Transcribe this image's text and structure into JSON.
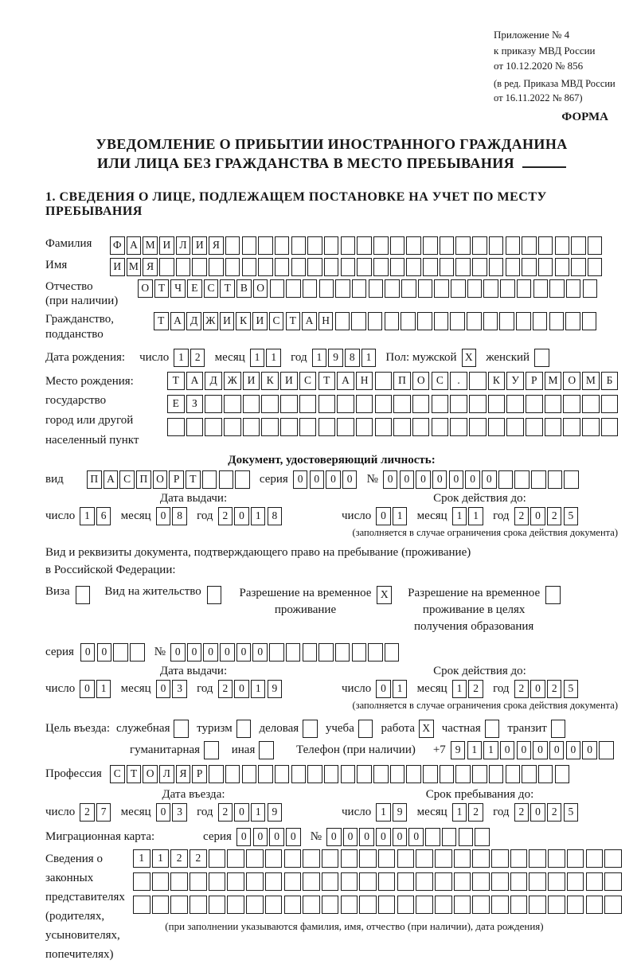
{
  "header": {
    "lines": [
      "Приложение № 4",
      "к приказу МВД России",
      "от 10.12.2020 № 856",
      "(в ред. Приказа МВД России",
      "от 16.11.2022 № 867)"
    ],
    "form_label": "ФОРМА"
  },
  "title": {
    "line1": "УВЕДОМЛЕНИЕ О ПРИБЫТИИ ИНОСТРАННОГО ГРАЖДАНИНА",
    "line2": "ИЛИ ЛИЦА БЕЗ ГРАЖДАНСТВА В МЕСТО ПРЕБЫВАНИЯ"
  },
  "section1_heading": "1. СВЕДЕНИЯ О ЛИЦЕ, ПОДЛЕЖАЩЕМ ПОСТАНОВКЕ НА УЧЕТ ПО МЕСТУ ПРЕБЫВАНИЯ",
  "labels": {
    "surname": "Фамилия",
    "name": "Имя",
    "patronymic1": "Отчество",
    "patronymic2": "(при наличии)",
    "citizenship1": "Гражданство,",
    "citizenship2": "подданство",
    "birth_date": "Дата рождения:",
    "day": "число",
    "month": "месяц",
    "year": "год",
    "sex_male": "Пол: мужской",
    "sex_female": "женский",
    "birth_place": [
      "Место рождения:",
      "государство",
      "город или другой",
      "населенный пункт"
    ],
    "identity_doc_heading": "Документ, удостоверяющий личность:",
    "doc_kind": "вид",
    "series": "серия",
    "number": "№",
    "issue_date": "Дата выдачи:",
    "valid_until": "Срок действия до:",
    "valid_note": "(заполняется в случае ограничения срока действия документа)",
    "residence_doc_line1": "Вид и реквизиты документа, подтверждающего право на пребывание (проживание)",
    "residence_doc_line2": "в Российской Федерации:",
    "visa": "Виза",
    "residence_permit": "Вид на жительство",
    "temp_residence": [
      "Разрешение на временное",
      "проживание"
    ],
    "temp_residence_edu": [
      "Разрешение на временное",
      "проживание в целях",
      "получения образования"
    ],
    "entry_purpose": "Цель въезда:",
    "purpose_business": "служебная",
    "purpose_tourism": "туризм",
    "purpose_commercial": "деловая",
    "purpose_study": "учеба",
    "purpose_work": "работа",
    "purpose_private": "частная",
    "purpose_transit": "транзит",
    "purpose_humanitarian": "гуманитарная",
    "purpose_other": "иная",
    "phone": "Телефон (при наличии)",
    "phone_prefix": "+7",
    "profession": "Профессия",
    "entry_date": "Дата въезда:",
    "stay_until": "Срок пребывания до:",
    "migration_card": "Миграционная карта:",
    "representatives": [
      "Сведения о",
      "законных",
      "представителях",
      "(родителях,",
      "усыновителях,",
      "попечителях)"
    ],
    "representatives_note": "(при заполнении указываются фамилия, имя, отчество (при наличии), дата рождения)"
  },
  "values": {
    "surname": {
      "t": "ФАМИЛИЯ",
      "n": 30
    },
    "name": {
      "t": "ИМЯ",
      "n": 30
    },
    "patronymic": {
      "t": "ОТЧЕСТВО",
      "n": 28
    },
    "citizenship": {
      "t": "ТАДЖИКИСТАН",
      "n": 27
    },
    "birth_day": "12",
    "birth_month": "11",
    "birth_year": "1981",
    "sex_male": "X",
    "sex_female": {
      "t": "",
      "n": 1
    },
    "birth_place_row1": {
      "t": "ТАДЖИКИСТАН_ПОС._КУРМОМБ",
      "n": 24
    },
    "birth_place_row2": {
      "t": "ЕЗ",
      "n": 24
    },
    "birth_place_row3": {
      "t": "",
      "n": 24
    },
    "doc_type": {
      "t": "ПАСПОРТ",
      "n": 10
    },
    "doc_series": "0000",
    "doc_number": {
      "t": "0000000",
      "n": 12
    },
    "doc_issue_day": "16",
    "doc_issue_month": "08",
    "doc_issue_year": "2018",
    "doc_valid_day": "01",
    "doc_valid_month": "11",
    "doc_valid_year": "2025",
    "visa": {
      "t": "",
      "n": 1
    },
    "residence_permit": {
      "t": "",
      "n": 1
    },
    "temp_residence": "X",
    "temp_residence_edu": {
      "t": "",
      "n": 1
    },
    "res_series": {
      "t": "00",
      "n": 4
    },
    "res_number": {
      "t": "000000",
      "n": 14
    },
    "res_issue_day": "01",
    "res_issue_month": "03",
    "res_issue_year": "2019",
    "res_valid_day": "01",
    "res_valid_month": "12",
    "res_valid_year": "2025",
    "purpose_business": {
      "t": "",
      "n": 1
    },
    "purpose_tourism": {
      "t": "",
      "n": 1
    },
    "purpose_commercial": {
      "t": "",
      "n": 1
    },
    "purpose_study": {
      "t": "",
      "n": 1
    },
    "purpose_work": "X",
    "purpose_private": {
      "t": "",
      "n": 1
    },
    "purpose_transit": {
      "t": "",
      "n": 1
    },
    "purpose_humanitarian": {
      "t": "",
      "n": 1
    },
    "purpose_other": {
      "t": "",
      "n": 1
    },
    "phone_digits": {
      "t": "911000000",
      "n": 10
    },
    "profession": {
      "t": "СТОЛЯР",
      "n": 28
    },
    "entry_day": "27",
    "entry_month": "03",
    "entry_year": "2019",
    "stay_day": "19",
    "stay_month": "12",
    "stay_year": "2025",
    "mig_series": "0000",
    "mig_number": {
      "t": "000000",
      "n": 10
    },
    "rep_row1": {
      "t": "1122",
      "n": 26
    },
    "rep_row2": {
      "t": "",
      "n": 26
    },
    "rep_row3": {
      "t": "",
      "n": 26
    }
  }
}
